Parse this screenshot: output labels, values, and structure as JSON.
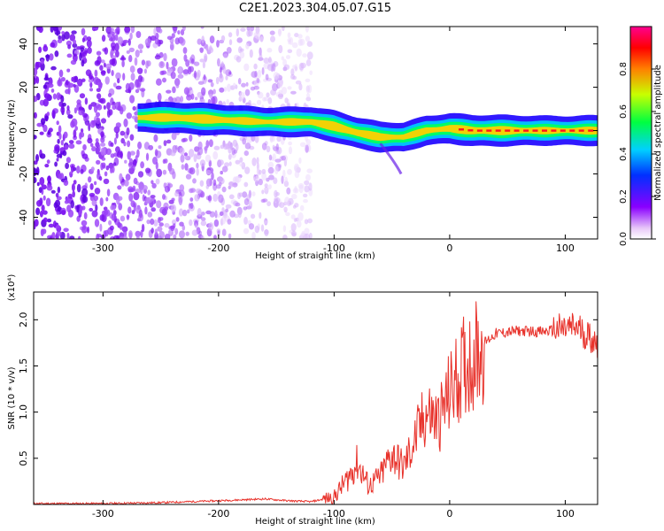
{
  "title": "C2E1.2023.304.05.07.G15",
  "chart_data": [
    {
      "type": "heatmap",
      "xlabel": "Height of straight line (km)",
      "ylabel": "Frequency (Hz)",
      "xlim": [
        -360,
        128
      ],
      "ylim": [
        -50,
        48
      ],
      "x_ticks": [
        -300,
        -200,
        -100,
        0,
        100
      ],
      "y_ticks": [
        -40,
        -20,
        0,
        20,
        40
      ],
      "colorbar": {
        "label": "Normalized spectral amplitude",
        "range": [
          0,
          1
        ],
        "ticks": [
          "0.0",
          "0.2",
          "0.4",
          "0.6",
          "0.8"
        ],
        "tick_values": [
          0,
          0.2,
          0.4,
          0.6,
          0.8
        ]
      },
      "ridge": [
        {
          "x": -270,
          "y": 6
        },
        {
          "x": -240,
          "y": 6
        },
        {
          "x": -200,
          "y": 5
        },
        {
          "x": -160,
          "y": 4
        },
        {
          "x": -120,
          "y": 4
        },
        {
          "x": -100,
          "y": 2
        },
        {
          "x": -80,
          "y": -1
        },
        {
          "x": -60,
          "y": -3
        },
        {
          "x": -40,
          "y": -3
        },
        {
          "x": -20,
          "y": 0
        },
        {
          "x": 0,
          "y": 1
        },
        {
          "x": 20,
          "y": 0
        },
        {
          "x": 60,
          "y": 0
        },
        {
          "x": 100,
          "y": 0
        },
        {
          "x": 128,
          "y": 0
        }
      ],
      "noise_region_x": [
        -360,
        -120
      ]
    },
    {
      "type": "line",
      "xlabel": "Height of straight line (km)",
      "ylabel": "SNR (10 * v/v)",
      "y_multiplier": "(x10⁴)",
      "xlim": [
        -360,
        128
      ],
      "ylim": [
        0,
        2.3
      ],
      "x_ticks": [
        -300,
        -200,
        -100,
        0,
        100
      ],
      "y_ticks": [
        "0.5",
        "1.0",
        "1.5",
        "2.0"
      ],
      "y_tick_values": [
        0.5,
        1.0,
        1.5,
        2.0
      ],
      "series": [
        {
          "color": "#e8332c",
          "x": [
            -360,
            -300,
            -250,
            -200,
            -160,
            -140,
            -120,
            -100,
            -90,
            -80,
            -70,
            -60,
            -50,
            -40,
            -30,
            -20,
            -10,
            0,
            10,
            20,
            30,
            40,
            60,
            80,
            100,
            110,
            128
          ],
          "y": [
            0.01,
            0.01,
            0.02,
            0.04,
            0.06,
            0.04,
            0.03,
            0.08,
            0.25,
            0.45,
            0.2,
            0.3,
            0.55,
            0.4,
            0.7,
            1.0,
            0.9,
            1.2,
            1.45,
            1.6,
            1.75,
            1.85,
            1.88,
            1.87,
            1.9,
            1.92,
            1.75
          ]
        }
      ]
    }
  ]
}
